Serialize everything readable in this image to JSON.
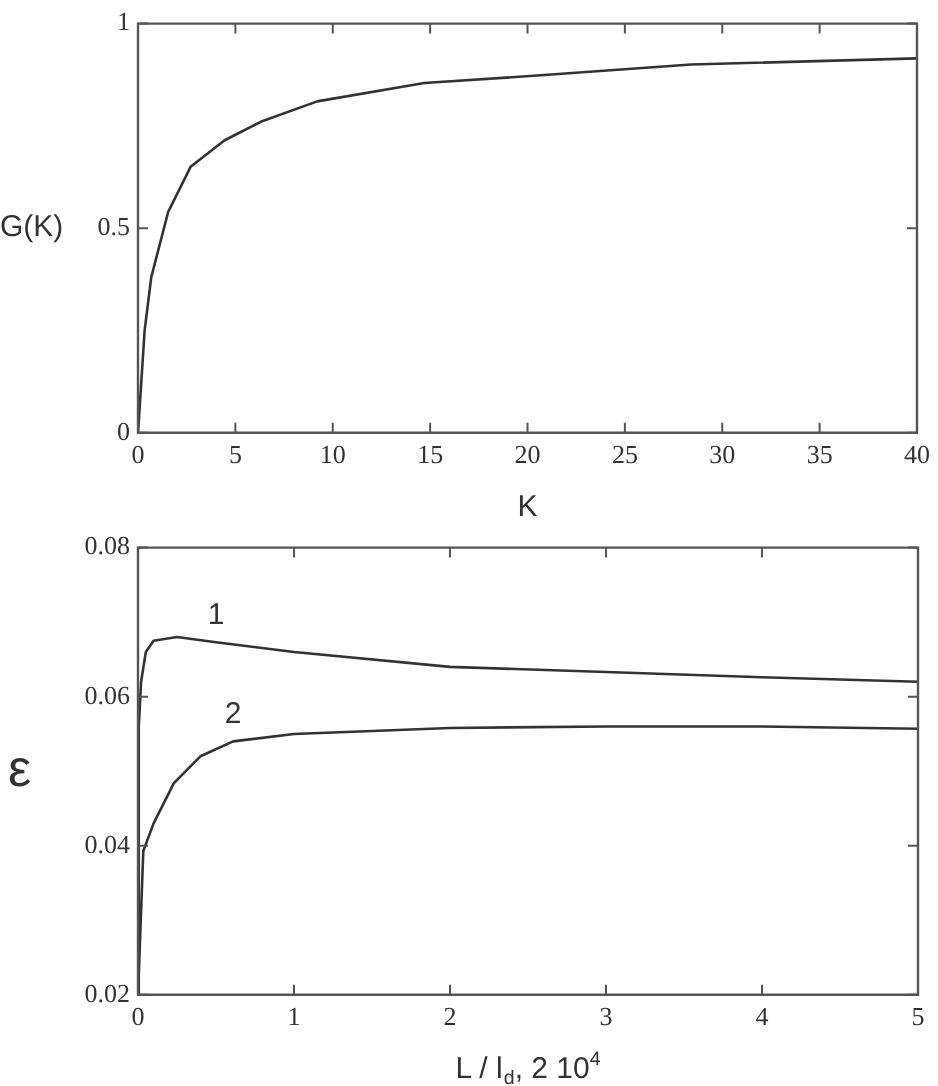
{
  "chart_data": [
    {
      "type": "line",
      "xlabel": "K",
      "ylabel": "G(K)",
      "xlim": [
        0,
        40
      ],
      "xticks": [
        0,
        5,
        10,
        15,
        20,
        25,
        30,
        35,
        40
      ],
      "ylim": [
        0,
        1
      ],
      "yticks": [
        0,
        0.5,
        1
      ],
      "grid": false,
      "legend": false,
      "marker": "none",
      "line_style": "solid",
      "series": [
        {
          "color": "#333333",
          "x": [
            0,
            0.34,
            0.68,
            1.55,
            2.7,
            4.45,
            6.3,
            9.2,
            14.7,
            20.5,
            28.4,
            40
          ],
          "values": [
            0,
            0.25,
            0.38,
            0.54,
            0.65,
            0.715,
            0.76,
            0.81,
            0.855,
            0.873,
            0.9,
            0.915
          ]
        }
      ]
    },
    {
      "type": "line",
      "xlabel": "L / l$_{d}$, 2 10$^{4}$",
      "ylabel": "ε",
      "xlim": [
        0,
        5
      ],
      "xticks": [
        0,
        1,
        2,
        3,
        4,
        5
      ],
      "ylim": [
        0.02,
        0.08
      ],
      "yticks": [
        0.02,
        0.04,
        0.06,
        0.08
      ],
      "grid": false,
      "legend": false,
      "marker": "none",
      "line_style": "solid",
      "series": [
        {
          "name": "1",
          "color": "#333333",
          "x": [
            0,
            0.005,
            0.02,
            0.05,
            0.1,
            0.25,
            0.5,
            1,
            2,
            3,
            4,
            5
          ],
          "values": [
            0.02,
            0.056,
            0.062,
            0.066,
            0.0675,
            0.068,
            0.0673,
            0.066,
            0.064,
            0.0633,
            0.0626,
            0.062
          ]
        },
        {
          "name": "2",
          "color": "#333333",
          "x": [
            0,
            0.034,
            0.1,
            0.23,
            0.4,
            0.61,
            1,
            2,
            3,
            4,
            5
          ],
          "values": [
            0.02,
            0.0393,
            0.043,
            0.0484,
            0.052,
            0.054,
            0.055,
            0.0558,
            0.056,
            0.056,
            0.0557
          ]
        }
      ]
    }
  ]
}
